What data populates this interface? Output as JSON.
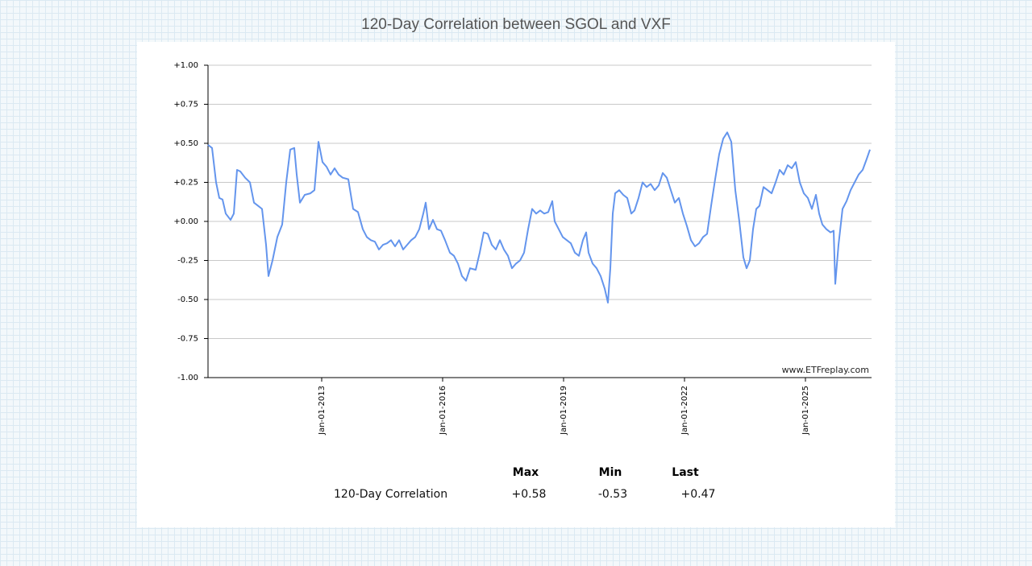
{
  "chart_data": {
    "type": "line",
    "title": "120-Day Correlation between SGOL and VXF",
    "x": [
      2010.18,
      2010.28,
      2010.38,
      2010.46,
      2010.54,
      2010.62,
      2010.74,
      2010.82,
      2010.9,
      2010.98,
      2011.1,
      2011.22,
      2011.32,
      2011.42,
      2011.52,
      2011.62,
      2011.68,
      2011.78,
      2011.9,
      2012.02,
      2012.12,
      2012.22,
      2012.32,
      2012.38,
      2012.46,
      2012.58,
      2012.72,
      2012.82,
      2012.92,
      2013.02,
      2013.12,
      2013.22,
      2013.32,
      2013.42,
      2013.52,
      2013.66,
      2013.78,
      2013.9,
      2014.02,
      2014.12,
      2014.22,
      2014.32,
      2014.42,
      2014.52,
      2014.62,
      2014.72,
      2014.82,
      2014.92,
      2015.02,
      2015.12,
      2015.22,
      2015.32,
      2015.42,
      2015.52,
      2015.58,
      2015.66,
      2015.76,
      2015.86,
      2015.96,
      2016.06,
      2016.18,
      2016.28,
      2016.38,
      2016.48,
      2016.58,
      2016.68,
      2016.82,
      2016.92,
      2017.02,
      2017.12,
      2017.22,
      2017.32,
      2017.42,
      2017.52,
      2017.62,
      2017.72,
      2017.82,
      2017.92,
      2018.02,
      2018.12,
      2018.22,
      2018.32,
      2018.42,
      2018.52,
      2018.62,
      2018.72,
      2018.78,
      2018.88,
      2018.98,
      2019.08,
      2019.18,
      2019.28,
      2019.38,
      2019.48,
      2019.56,
      2019.62,
      2019.72,
      2019.82,
      2019.92,
      2020.02,
      2020.1,
      2020.16,
      2020.22,
      2020.28,
      2020.38,
      2020.48,
      2020.58,
      2020.68,
      2020.76,
      2020.86,
      2020.96,
      2021.06,
      2021.16,
      2021.26,
      2021.36,
      2021.46,
      2021.56,
      2021.66,
      2021.76,
      2021.86,
      2021.96,
      2022.06,
      2022.16,
      2022.26,
      2022.36,
      2022.46,
      2022.56,
      2022.66,
      2022.76,
      2022.86,
      2022.96,
      2023.06,
      2023.16,
      2023.26,
      2023.36,
      2023.46,
      2023.54,
      2023.62,
      2023.7,
      2023.78,
      2023.86,
      2023.96,
      2024.06,
      2024.16,
      2024.26,
      2024.36,
      2024.46,
      2024.56,
      2024.66,
      2024.76,
      2024.86,
      2024.96,
      2025.06,
      2025.16,
      2025.26,
      2025.34,
      2025.42,
      2025.52,
      2025.62,
      2025.7,
      2025.74,
      2025.82,
      2025.92,
      2026.02,
      2026.12,
      2026.22,
      2026.32,
      2026.42,
      2026.52,
      2026.6
    ],
    "series": [
      {
        "name": "120-Day Correlation",
        "color": "#6495ed",
        "values": [
          0.49,
          0.47,
          0.25,
          0.15,
          0.14,
          0.05,
          0.01,
          0.05,
          0.33,
          0.32,
          0.28,
          0.25,
          0.12,
          0.1,
          0.08,
          -0.15,
          -0.35,
          -0.25,
          -0.1,
          -0.02,
          0.25,
          0.46,
          0.47,
          0.3,
          0.12,
          0.17,
          0.18,
          0.2,
          0.51,
          0.38,
          0.35,
          0.3,
          0.34,
          0.3,
          0.28,
          0.27,
          0.08,
          0.06,
          -0.05,
          -0.1,
          -0.12,
          -0.13,
          -0.18,
          -0.15,
          -0.14,
          -0.12,
          -0.16,
          -0.12,
          -0.18,
          -0.15,
          -0.12,
          -0.1,
          -0.05,
          0.05,
          0.12,
          -0.05,
          0.01,
          -0.05,
          -0.06,
          -0.12,
          -0.2,
          -0.22,
          -0.27,
          -0.35,
          -0.38,
          -0.3,
          -0.31,
          -0.2,
          -0.07,
          -0.08,
          -0.15,
          -0.18,
          -0.12,
          -0.18,
          -0.22,
          -0.3,
          -0.27,
          -0.25,
          -0.2,
          -0.05,
          0.08,
          0.05,
          0.07,
          0.05,
          0.06,
          0.13,
          0.0,
          -0.05,
          -0.1,
          -0.12,
          -0.14,
          -0.2,
          -0.22,
          -0.12,
          -0.07,
          -0.2,
          -0.27,
          -0.3,
          -0.35,
          -0.43,
          -0.52,
          -0.3,
          0.05,
          0.18,
          0.2,
          0.17,
          0.15,
          0.05,
          0.07,
          0.15,
          0.25,
          0.22,
          0.24,
          0.2,
          0.23,
          0.31,
          0.28,
          0.2,
          0.12,
          0.15,
          0.05,
          -0.03,
          -0.12,
          -0.16,
          -0.14,
          -0.1,
          -0.08,
          0.1,
          0.27,
          0.43,
          0.53,
          0.57,
          0.51,
          0.2,
          0.0,
          -0.23,
          -0.3,
          -0.25,
          -0.05,
          0.08,
          0.1,
          0.22,
          0.2,
          0.18,
          0.25,
          0.33,
          0.3,
          0.36,
          0.34,
          0.38,
          0.25,
          0.18,
          0.15,
          0.08,
          0.17,
          0.05,
          -0.02,
          -0.05,
          -0.07,
          -0.06,
          -0.4,
          -0.15,
          0.08,
          0.13,
          0.2,
          0.25,
          0.3,
          0.33,
          0.4,
          0.46
        ]
      }
    ],
    "xlim": [
      2010.18,
      2026.64
    ],
    "xticks": [
      {
        "value": 2013,
        "label": "Jan-01-2013"
      },
      {
        "value": 2016,
        "label": "Jan-01-2016"
      },
      {
        "value": 2019,
        "label": "Jan-01-2019"
      },
      {
        "value": 2022,
        "label": "Jan-01-2022"
      },
      {
        "value": 2025,
        "label": "Jan-01-2025"
      }
    ],
    "ylim": [
      -1,
      1
    ],
    "yticks": [
      {
        "value": -1,
        "label": "-1.00"
      },
      {
        "value": -0.75,
        "label": "-0.75"
      },
      {
        "value": -0.5,
        "label": "-0.50"
      },
      {
        "value": -0.25,
        "label": "-0.25"
      },
      {
        "value": 0,
        "label": "+0.00"
      },
      {
        "value": 0.25,
        "label": "+0.25"
      },
      {
        "value": 0.5,
        "label": "+0.50"
      },
      {
        "value": 0.75,
        "label": "+0.75"
      },
      {
        "value": 1,
        "label": "+1.00"
      }
    ],
    "grid": true,
    "watermark": "www.ETFreplay.com",
    "stats": {
      "headers": [
        "Max",
        "Min",
        "Last"
      ],
      "row_label": "120-Day Correlation",
      "values": [
        "+0.58",
        "-0.53",
        "+0.47"
      ]
    }
  }
}
